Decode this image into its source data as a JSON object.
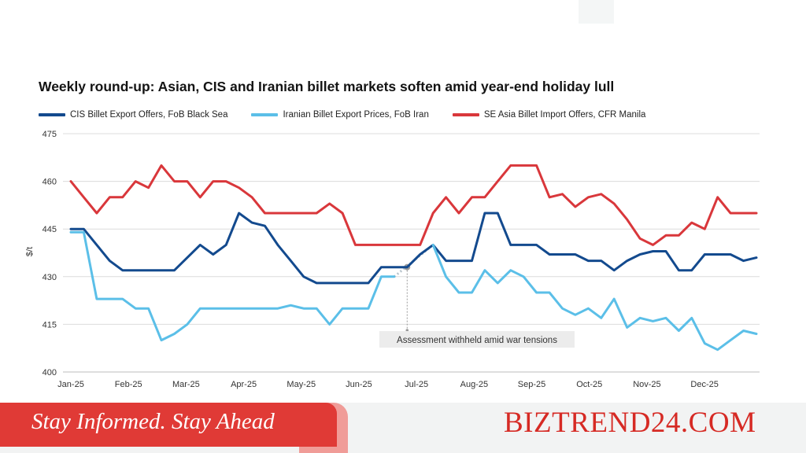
{
  "page": {
    "banner_text": "Stay Informed. Stay Ahead",
    "brand": "BIZTREND24.COM",
    "colors": {
      "banner_red": "#e03a36",
      "brand_red": "#d62a24"
    }
  },
  "chart_data": {
    "type": "line",
    "title": "Weekly round-up: Asian, CIS and Iranian billet markets soften amid year-end holiday lull",
    "xlabel": "",
    "ylabel": "$/t",
    "ylim": [
      400,
      475
    ],
    "yticks": [
      "400",
      "415",
      "430",
      "445",
      "460",
      "475"
    ],
    "xticks": [
      "Jan-25",
      "Feb-25",
      "Mar-25",
      "Apr-25",
      "May-25",
      "Jun-25",
      "Jul-25",
      "Aug-25",
      "Sep-25",
      "Oct-25",
      "Nov-25",
      "Dec-25"
    ],
    "grid": "horizontal",
    "legend_position": "top",
    "annotation": {
      "text": "Assessment withheld amid war tensions",
      "week": 26,
      "value": 433
    },
    "series": [
      {
        "name": "CIS Billet Export Offers, FoB Black Sea",
        "color": "#134a8e",
        "values": [
          445,
          445,
          440,
          435,
          432,
          432,
          432,
          432,
          432,
          436,
          440,
          437,
          440,
          450,
          447,
          446,
          440,
          435,
          430,
          428,
          428,
          428,
          428,
          428,
          433,
          433,
          433,
          437,
          440,
          435,
          435,
          435,
          450,
          450,
          440,
          440,
          440,
          437,
          437,
          437,
          435,
          435,
          432,
          435,
          437,
          438,
          438,
          432,
          432,
          437,
          437,
          437,
          435,
          436
        ]
      },
      {
        "name": "Iranian Billet Export Prices, FoB Iran",
        "color": "#5bbfe8",
        "values": [
          444,
          444,
          423,
          423,
          423,
          420,
          420,
          410,
          412,
          415,
          420,
          420,
          420,
          420,
          420,
          420,
          420,
          421,
          420,
          420,
          415,
          420,
          420,
          420,
          430,
          430,
          null,
          null,
          440,
          430,
          425,
          425,
          432,
          428,
          432,
          430,
          425,
          425,
          420,
          418,
          420,
          417,
          423,
          414,
          417,
          416,
          417,
          413,
          417,
          409,
          407,
          410,
          413,
          412
        ]
      },
      {
        "name": "SE Asia Billet Import Offers, CFR Manila",
        "color": "#d9373b",
        "values": [
          460,
          455,
          450,
          455,
          455,
          460,
          458,
          465,
          460,
          460,
          455,
          460,
          460,
          458,
          455,
          450,
          450,
          450,
          450,
          450,
          453,
          450,
          440,
          440,
          440,
          440,
          440,
          440,
          450,
          455,
          450,
          455,
          455,
          460,
          465,
          465,
          465,
          455,
          456,
          452,
          455,
          456,
          453,
          448,
          442,
          440,
          443,
          443,
          447,
          445,
          455,
          450,
          450,
          450
        ]
      }
    ]
  }
}
